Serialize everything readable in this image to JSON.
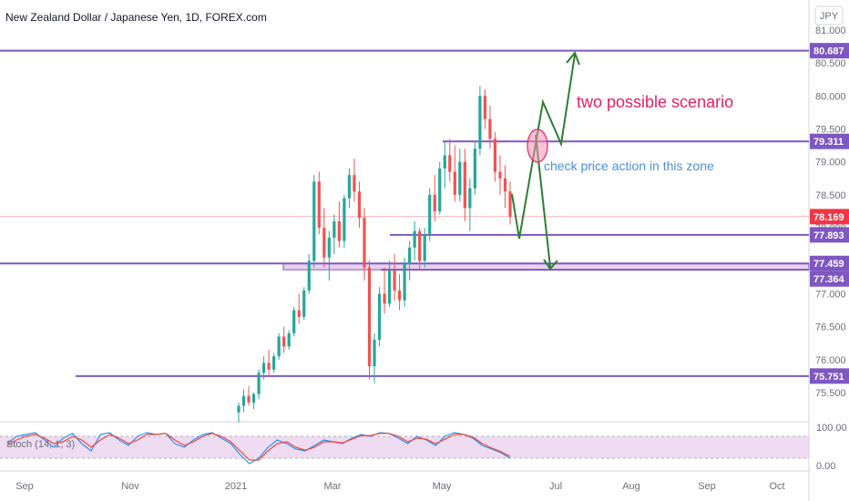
{
  "header": {
    "title": "New Zealand Dollar / Japanese Yen, 1D, FOREX.com",
    "currency": "JPY"
  },
  "colors": {
    "up": "#26a69a",
    "down": "#ef5350",
    "level": "#7e57c2",
    "zone": "#e1bee7",
    "current": "#f23645",
    "arrow": "#2e7d32",
    "annotation_red": "#e91e63",
    "annotation_blue": "#4a90d9",
    "stoch_k": "#2196f3",
    "stoch_d": "#f44336",
    "stoch_band": "#e1bee7"
  },
  "chart_data": {
    "type": "candlestick",
    "y_axis": {
      "min": 75.0,
      "max": 81.2,
      "ticks": [
        "81.000",
        "80.500",
        "80.000",
        "79.500",
        "79.000",
        "78.500",
        "78.000",
        "77.500",
        "77.000",
        "76.500",
        "76.000",
        "75.500"
      ]
    },
    "x_axis": {
      "labels": [
        "Sep",
        "Nov",
        "2021",
        "Mar",
        "May",
        "Jul",
        "Aug",
        "Sep",
        "Oct"
      ]
    },
    "levels": [
      {
        "price": 80.687,
        "label": "80.687"
      },
      {
        "price": 79.311,
        "label": "79.311"
      },
      {
        "price": 77.893,
        "label": "77.893"
      },
      {
        "price": 77.459,
        "label": "77.459"
      },
      {
        "price": 77.364,
        "label": "77.364"
      },
      {
        "price": 75.751,
        "label": "75.751"
      }
    ],
    "current_price": {
      "price": 78.169,
      "label": "78.169"
    },
    "annotations": {
      "scenario": "two possible scenario",
      "zone_note": "check price action in this zone"
    },
    "candles": [
      [
        75.2,
        75.35,
        75.05,
        75.3
      ],
      [
        75.3,
        75.55,
        75.2,
        75.45
      ],
      [
        75.45,
        75.6,
        75.3,
        75.35
      ],
      [
        75.35,
        75.5,
        75.25,
        75.48
      ],
      [
        75.48,
        75.85,
        75.4,
        75.8
      ],
      [
        75.8,
        76.05,
        75.7,
        75.95
      ],
      [
        75.95,
        76.15,
        75.75,
        75.85
      ],
      [
        75.85,
        76.1,
        75.8,
        76.05
      ],
      [
        76.05,
        76.4,
        76.0,
        76.35
      ],
      [
        76.35,
        76.5,
        76.1,
        76.2
      ],
      [
        76.2,
        76.45,
        76.15,
        76.4
      ],
      [
        76.4,
        76.8,
        76.35,
        76.75
      ],
      [
        76.75,
        77.0,
        76.55,
        76.65
      ],
      [
        76.65,
        77.1,
        76.6,
        77.05
      ],
      [
        77.05,
        77.6,
        77.0,
        77.5
      ],
      [
        77.5,
        78.8,
        77.4,
        78.7
      ],
      [
        78.7,
        78.85,
        77.9,
        78.0
      ],
      [
        78.0,
        78.3,
        77.4,
        77.55
      ],
      [
        77.55,
        77.95,
        77.2,
        77.85
      ],
      [
        77.85,
        78.2,
        77.6,
        78.1
      ],
      [
        78.1,
        78.4,
        77.7,
        77.8
      ],
      [
        77.8,
        78.5,
        77.7,
        78.45
      ],
      [
        78.45,
        78.9,
        78.3,
        78.8
      ],
      [
        78.8,
        79.05,
        78.4,
        78.55
      ],
      [
        78.55,
        78.7,
        78.0,
        78.15
      ],
      [
        78.15,
        78.3,
        77.2,
        77.4
      ],
      [
        77.4,
        77.5,
        75.7,
        75.9
      ],
      [
        75.9,
        76.4,
        75.65,
        76.3
      ],
      [
        76.3,
        77.1,
        76.2,
        77.0
      ],
      [
        77.0,
        77.4,
        76.7,
        76.85
      ],
      [
        76.85,
        77.5,
        76.8,
        77.35
      ],
      [
        77.35,
        77.6,
        76.9,
        77.05
      ],
      [
        77.05,
        77.3,
        76.75,
        76.9
      ],
      [
        76.9,
        77.55,
        76.8,
        77.45
      ],
      [
        77.45,
        77.8,
        77.2,
        77.7
      ],
      [
        77.7,
        78.1,
        77.5,
        77.95
      ],
      [
        77.95,
        78.0,
        77.35,
        77.5
      ],
      [
        77.5,
        78.0,
        77.4,
        77.9
      ],
      [
        77.9,
        78.6,
        77.8,
        78.5
      ],
      [
        78.5,
        78.8,
        78.1,
        78.25
      ],
      [
        78.25,
        79.0,
        78.2,
        78.9
      ],
      [
        78.9,
        79.3,
        78.6,
        79.1
      ],
      [
        79.1,
        79.35,
        78.7,
        78.85
      ],
      [
        78.85,
        79.25,
        78.4,
        78.5
      ],
      [
        78.5,
        79.2,
        78.4,
        79.0
      ],
      [
        79.0,
        79.2,
        78.1,
        78.3
      ],
      [
        78.3,
        78.75,
        77.95,
        78.6
      ],
      [
        78.6,
        79.3,
        78.5,
        79.2
      ],
      [
        79.2,
        80.15,
        79.1,
        80.0
      ],
      [
        80.0,
        80.1,
        79.5,
        79.65
      ],
      [
        79.65,
        79.85,
        79.2,
        79.35
      ],
      [
        79.35,
        79.45,
        78.7,
        78.85
      ],
      [
        78.85,
        79.1,
        78.5,
        78.75
      ],
      [
        78.75,
        78.95,
        78.3,
        78.55
      ],
      [
        78.55,
        78.7,
        78.05,
        78.17
      ]
    ],
    "stochastic": {
      "name": "Stoch (14, 1, 3)",
      "ticks": [
        "100.00",
        "0.00"
      ],
      "k": [
        60,
        80,
        85,
        90,
        70,
        50,
        75,
        88,
        60,
        40,
        85,
        90,
        70,
        55,
        80,
        90,
        85,
        88,
        60,
        50,
        70,
        85,
        90,
        75,
        60,
        30,
        5,
        20,
        50,
        70,
        60,
        45,
        40,
        55,
        70,
        65,
        60,
        75,
        85,
        80,
        90,
        88,
        75,
        60,
        80,
        70,
        55,
        80,
        90,
        85,
        75,
        55,
        45,
        35,
        20
      ],
      "d": [
        55,
        70,
        80,
        85,
        75,
        60,
        65,
        80,
        70,
        50,
        70,
        85,
        75,
        60,
        70,
        85,
        85,
        88,
        70,
        55,
        65,
        80,
        88,
        80,
        65,
        40,
        15,
        15,
        40,
        60,
        65,
        50,
        42,
        50,
        65,
        65,
        62,
        72,
        82,
        82,
        88,
        88,
        80,
        65,
        75,
        72,
        60,
        72,
        85,
        85,
        78,
        60,
        48,
        38,
        25
      ]
    }
  }
}
